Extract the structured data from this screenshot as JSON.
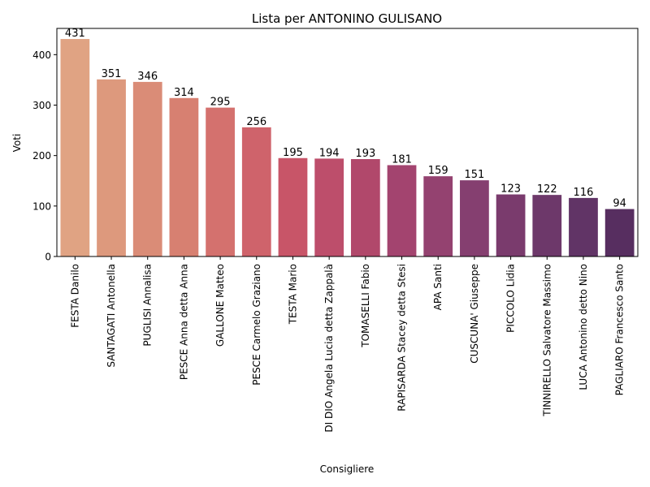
{
  "chart_data": {
    "type": "bar",
    "title": "Lista per ANTONINO GULISANO",
    "xlabel": "Consigliere",
    "ylabel": "Voti",
    "ylim": [
      0,
      452
    ],
    "yticks": [
      0,
      100,
      200,
      300,
      400
    ],
    "grid": false,
    "categories": [
      "FESTA Danilo",
      "SANTAGATI Antonella",
      "PUGLISI Annalisa",
      "PESCE Anna detta Anna",
      "GALLONE Matteo",
      "PESCE Carmelo Graziano",
      "TESTA Mario",
      "DI DIO Angela Lucia detta Zappalà",
      "TOMASELLI Fabio",
      "RAPISARDA Stacey detta Stesi",
      "APA Santi",
      "CUSCUNA' Giuseppe",
      "PICCOLO Lidia",
      "TINNIRELLO Salvatore Massimo",
      "LUCA Antonino detto Nino",
      "PAGLIARO Francesco Santo"
    ],
    "values": [
      431,
      351,
      346,
      314,
      295,
      256,
      195,
      194,
      193,
      181,
      159,
      151,
      123,
      122,
      116,
      94
    ],
    "colors": [
      "#e0a383",
      "#dd997d",
      "#da8c77",
      "#d78071",
      "#d4716e",
      "#cf636b",
      "#c85568",
      "#bd4e6b",
      "#b1486b",
      "#a3446f",
      "#944270",
      "#853f70",
      "#7a3b6d",
      "#6d386a",
      "#613466",
      "#572e60"
    ]
  }
}
